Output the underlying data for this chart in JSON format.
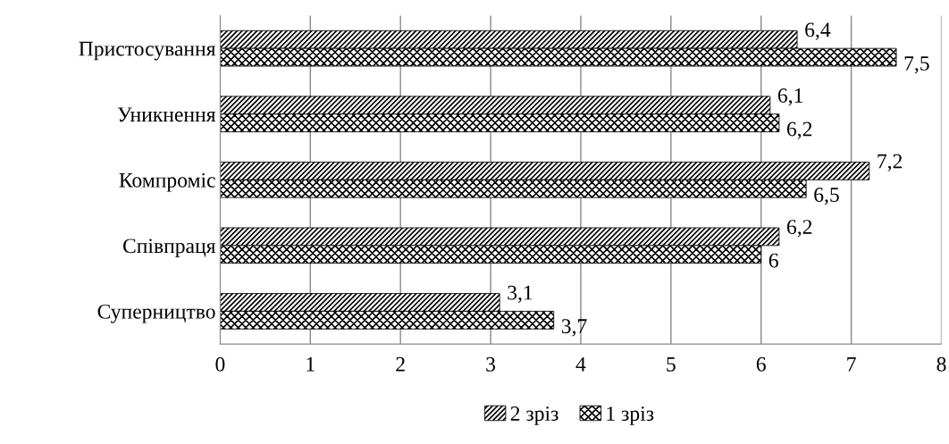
{
  "chart_data": {
    "type": "bar",
    "orientation": "horizontal",
    "categories": [
      "Пристосування",
      "Уникнення",
      "Компроміс",
      "Співпраця",
      "Суперництво"
    ],
    "series": [
      {
        "name": "2 зріз",
        "color": "#000000",
        "values": [
          6.4,
          6.1,
          7.2,
          6.2,
          3.1
        ],
        "value_labels": [
          "6,4",
          "6,1",
          "7,2",
          "6,2",
          "3,1"
        ]
      },
      {
        "name": "1 зріз",
        "color": "#000000",
        "values": [
          7.5,
          6.2,
          6.5,
          6,
          3.7
        ],
        "value_labels": [
          "7,5",
          "6,2",
          "6,5",
          "6",
          "3,7"
        ]
      }
    ],
    "xlim": [
      0,
      8
    ],
    "xticks": [
      0,
      1,
      2,
      3,
      4,
      5,
      6,
      7,
      8
    ],
    "grid": "x",
    "legend": "bottom"
  }
}
